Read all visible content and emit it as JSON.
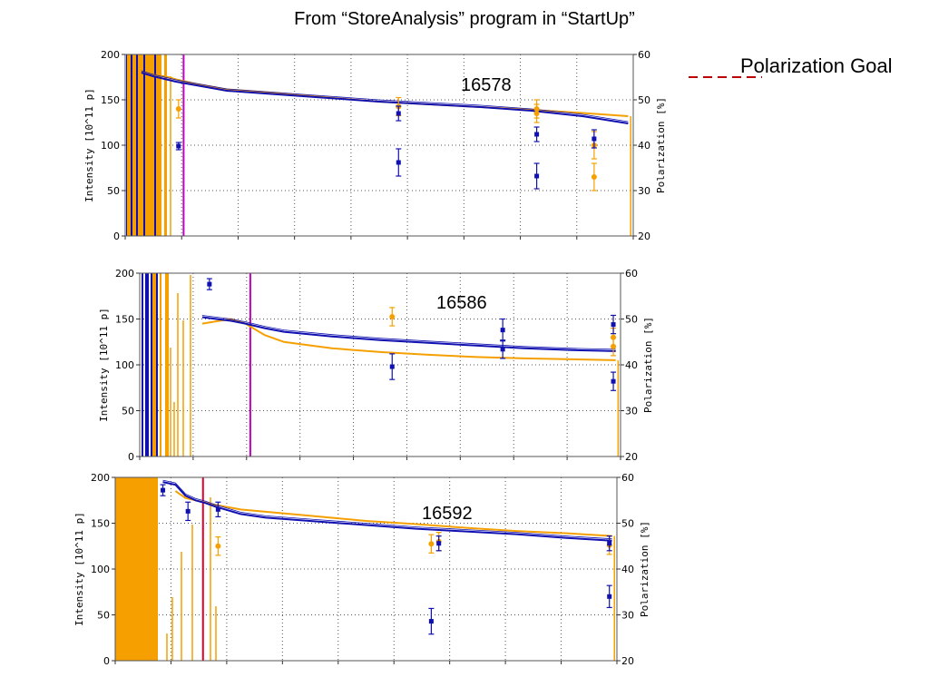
{
  "slide": {
    "title": "From “StoreAnalysis” program in “StartUp”",
    "goal_label": "Polarization Goal"
  },
  "colors": {
    "intensity": "#1010b0",
    "polarization": "#f5a000",
    "marker_magenta": "#c000c0",
    "marker_red": "#e0002a",
    "goal_line": "#c00000",
    "grid": "#555555"
  },
  "chart_data": [
    {
      "type": "line",
      "run_label": "16578",
      "ylabel": "Intensity [10^11 p]",
      "y2label": "Polarization [%]",
      "ylim": [
        0,
        200
      ],
      "y2lim": [
        20,
        60
      ],
      "yticks": [
        0,
        50,
        100,
        150,
        200
      ],
      "y2ticks": [
        20,
        30,
        40,
        50,
        60
      ],
      "xlim": [
        0,
        100
      ],
      "grid": true,
      "vline_x": 11.5,
      "series": [
        {
          "role": "intensity",
          "x": [
            3.2,
            5.5,
            7.0,
            8.5,
            10,
            14,
            20,
            30,
            40,
            50,
            60,
            70,
            80,
            90,
            99
          ],
          "values": [
            180,
            176,
            174,
            172,
            170,
            166,
            160,
            156,
            152,
            148,
            145,
            142,
            138,
            132,
            124
          ]
        },
        {
          "role": "polarization",
          "x": [
            3.2,
            5.5,
            7.0,
            8.5,
            10,
            14,
            20,
            30,
            40,
            50,
            60,
            70,
            80,
            90,
            99
          ],
          "values": [
            56,
            55.5,
            55.3,
            55,
            54.5,
            53.5,
            52.3,
            51.5,
            50.5,
            49.6,
            49,
            48.4,
            47.8,
            47.1,
            46.4
          ]
        },
        {
          "role": "intensity_points",
          "points": [
            [
              10.5,
              99,
              4
            ],
            [
              53.8,
              81,
              15
            ],
            [
              53.8,
              135,
              8
            ],
            [
              81,
              66,
              14
            ],
            [
              81,
              112,
              8
            ],
            [
              92.3,
              107,
              10
            ]
          ]
        },
        {
          "role": "polarization_points",
          "points": [
            [
              10.5,
              48,
              2
            ],
            [
              53.8,
              48.5,
              2
            ],
            [
              81,
              48,
              2
            ],
            [
              81,
              47,
              2
            ],
            [
              92.3,
              40,
              3
            ],
            [
              92.3,
              33,
              3
            ]
          ]
        }
      ]
    },
    {
      "type": "line",
      "run_label": "16586",
      "ylabel": "Intensity [10^11 p]",
      "y2label": "Polarization [%]",
      "ylim": [
        0,
        200
      ],
      "y2lim": [
        20,
        60
      ],
      "yticks": [
        0,
        50,
        100,
        150,
        200
      ],
      "y2ticks": [
        20,
        30,
        40,
        50,
        60
      ],
      "xlim": [
        0,
        100
      ],
      "grid": true,
      "vline_x": 23,
      "series": [
        {
          "role": "intensity",
          "x": [
            13,
            16,
            19,
            22,
            26,
            30,
            40,
            50,
            60,
            70,
            80,
            90,
            99
          ],
          "values": [
            152,
            150,
            148,
            145,
            140,
            136,
            131,
            127,
            124,
            121,
            118,
            116,
            115
          ]
        },
        {
          "role": "polarization",
          "x": [
            13,
            16,
            19,
            22,
            26,
            30,
            40,
            50,
            60,
            70,
            80,
            90,
            99
          ],
          "values": [
            49,
            49.5,
            50,
            49,
            46.5,
            45,
            43.6,
            42.8,
            42.2,
            41.7,
            41.4,
            41.2,
            41
          ]
        },
        {
          "role": "intensity_points",
          "points": [
            [
              14.5,
              188,
              6
            ],
            [
              52.5,
              98,
              14
            ],
            [
              75.5,
              138,
              12
            ],
            [
              75.5,
              117,
              10
            ],
            [
              98.5,
              144,
              10
            ],
            [
              98.5,
              82,
              10
            ]
          ]
        },
        {
          "role": "polarization_points",
          "points": [
            [
              52.5,
              50.5,
              2
            ],
            [
              98.5,
              46,
              2
            ],
            [
              98.5,
              44,
              2
            ]
          ]
        }
      ]
    },
    {
      "type": "line",
      "run_label": "16592",
      "ylabel": "Intensity [10^11 p]",
      "y2label": "Polarization [%]",
      "ylim": [
        0,
        200
      ],
      "y2lim": [
        20,
        60
      ],
      "yticks": [
        0,
        50,
        100,
        150,
        200
      ],
      "y2ticks": [
        20,
        30,
        40,
        50,
        60
      ],
      "xlim": [
        0,
        100
      ],
      "grid": true,
      "vline_x": 17.5,
      "series": [
        {
          "role": "intensity",
          "x": [
            9.5,
            12,
            14,
            16,
            18,
            20,
            25,
            30,
            40,
            50,
            60,
            70,
            80,
            90,
            99
          ],
          "values": [
            195,
            192,
            180,
            175,
            172,
            168,
            160,
            156,
            152,
            148,
            144,
            141,
            138,
            134,
            131
          ]
        },
        {
          "role": "polarization",
          "x": [
            12,
            14,
            16,
            18,
            20,
            25,
            30,
            40,
            50,
            60,
            70,
            80,
            90,
            99
          ],
          "values": [
            57,
            55.5,
            55,
            54.5,
            54,
            53,
            52.5,
            51.5,
            50.5,
            49.8,
            49,
            48.3,
            47.8,
            47.2
          ]
        },
        {
          "role": "intensity_points",
          "points": [
            [
              9.5,
              186,
              6
            ],
            [
              14.5,
              163,
              10
            ],
            [
              20.5,
              165,
              8
            ],
            [
              63,
              43,
              14
            ],
            [
              64.5,
              128,
              8
            ],
            [
              98.5,
              70,
              12
            ],
            [
              98.5,
              128,
              8
            ]
          ]
        },
        {
          "role": "polarization_points",
          "points": [
            [
              20.5,
              45,
              2
            ],
            [
              63,
              45.5,
              2
            ],
            [
              64.5,
              46,
              2
            ],
            [
              98.5,
              45.2,
              2
            ]
          ]
        }
      ]
    }
  ]
}
